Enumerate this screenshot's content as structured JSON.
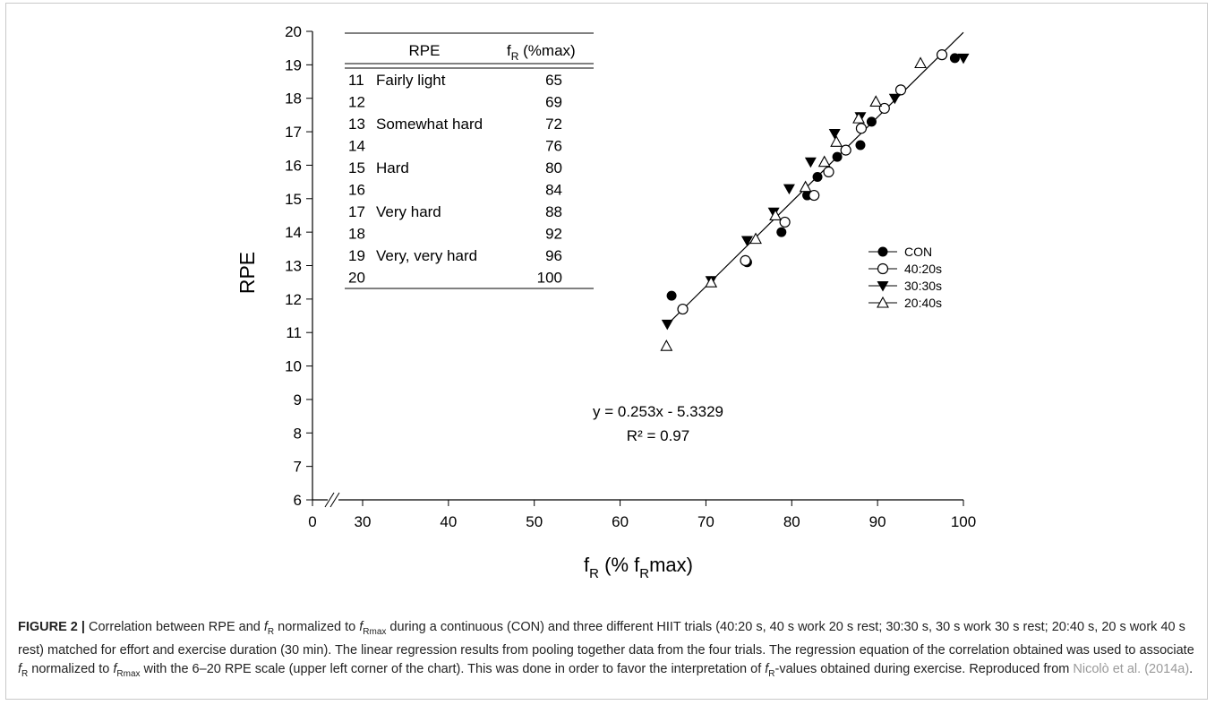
{
  "chart_data": {
    "type": "scatter",
    "ylabel": "RPE",
    "xlabel_main": "f",
    "xlabel_sub1": "R",
    "xlabel_mid": " (% f",
    "xlabel_sub2": "R",
    "xlabel_end": "max)",
    "xlim": [
      0,
      100
    ],
    "ylim": [
      6,
      20
    ],
    "x_ticks": [
      "0",
      "30",
      "40",
      "50",
      "60",
      "70",
      "80",
      "90",
      "100"
    ],
    "y_ticks": [
      "6",
      "7",
      "8",
      "9",
      "10",
      "11",
      "12",
      "13",
      "14",
      "15",
      "16",
      "17",
      "18",
      "19",
      "20"
    ],
    "axis_break": true,
    "grid": false,
    "legend_position": "right",
    "series": [
      {
        "name": "CON",
        "marker": "filled-circle",
        "x": [
          66.0,
          74.8,
          78.8,
          81.8,
          83.0,
          85.3,
          88.0,
          89.3,
          99.0
        ],
        "y": [
          12.1,
          13.1,
          14.0,
          15.1,
          15.65,
          16.25,
          16.6,
          17.3,
          19.2
        ]
      },
      {
        "name": "40:20s",
        "marker": "open-circle",
        "x": [
          67.3,
          74.6,
          79.2,
          82.6,
          84.3,
          86.3,
          88.1,
          90.8,
          92.7,
          97.5
        ],
        "y": [
          11.7,
          13.15,
          14.3,
          15.1,
          15.8,
          16.45,
          17.1,
          17.7,
          18.25,
          19.3
        ]
      },
      {
        "name": "30:30s",
        "marker": "filled-triangle-down",
        "x": [
          65.5,
          70.6,
          74.8,
          77.9,
          79.7,
          82.2,
          85.0,
          88.0,
          92.0,
          100.0
        ],
        "y": [
          11.25,
          12.55,
          13.75,
          14.6,
          15.3,
          16.1,
          16.95,
          17.45,
          18.0,
          19.2
        ]
      },
      {
        "name": "20:40s",
        "marker": "open-triangle-up",
        "x": [
          65.4,
          70.6,
          75.8,
          78.1,
          81.6,
          83.8,
          85.2,
          87.8,
          89.8,
          95.0
        ],
        "y": [
          10.6,
          12.5,
          13.8,
          14.5,
          15.35,
          16.1,
          16.7,
          17.4,
          17.9,
          19.05
        ]
      }
    ],
    "regression": {
      "slope": 0.253,
      "intercept": -5.3329,
      "x_range": [
        65.3,
        100.0
      ],
      "equation": "y = 0.253x - 5.3329",
      "r2": "R² = 0.97"
    },
    "inset_table": {
      "header_rpe": "RPE",
      "header_f": "f",
      "header_f_sub": "R",
      "header_f_unit": " (%max)",
      "rows": [
        {
          "rpe": "11",
          "desc": "Fairly light",
          "f": "65"
        },
        {
          "rpe": "12",
          "desc": "",
          "f": "69"
        },
        {
          "rpe": "13",
          "desc": "Somewhat hard",
          "f": "72"
        },
        {
          "rpe": "14",
          "desc": "",
          "f": "76"
        },
        {
          "rpe": "15",
          "desc": "Hard",
          "f": "80"
        },
        {
          "rpe": "16",
          "desc": "",
          "f": "84"
        },
        {
          "rpe": "17",
          "desc": "Very hard",
          "f": "88"
        },
        {
          "rpe": "18",
          "desc": "",
          "f": "92"
        },
        {
          "rpe": "19",
          "desc": "Very, very hard",
          "f": "96"
        },
        {
          "rpe": "20",
          "desc": "",
          "f": "100"
        }
      ]
    }
  },
  "caption": {
    "label": "FIGURE 2 |",
    "t1": " Correlation between RPE and ",
    "fr_f": "f",
    "fr_sub": "R",
    "t2": " normalized to ",
    "frmax_f": "f",
    "frmax_sub": "Rmax",
    "t3": " during a continuous (CON) and three different HIIT trials (40:20 s, 40 s work 20 s rest; 30:30 s, 30 s work 30 s rest; 20:40 s, 20 s work 40 s rest) matched for effort and exercise duration (30 min). The linear regression results from pooling together data from the four trials. The regression equation of the correlation obtained was used to associate ",
    "t4": " normalized to ",
    "t5": " with the 6–20 RPE scale (upper left corner of the chart). This was done in order to favor the interpretation of ",
    "t6": "-values obtained during exercise. Reproduced from ",
    "ref": "Nicolò et al. (2014a)",
    "t7": "."
  }
}
